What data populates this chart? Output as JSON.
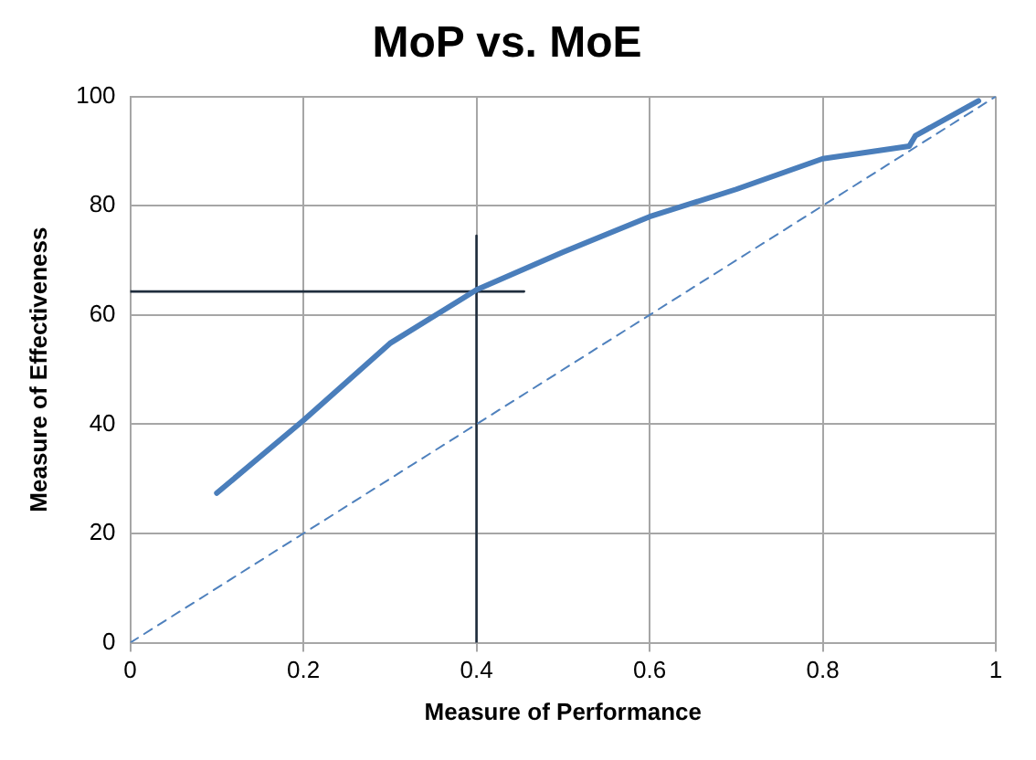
{
  "chart_data": {
    "type": "line",
    "title": "MoP vs. MoE",
    "xlabel": "Measure of Performance",
    "ylabel": "Measure of Effectiveness",
    "xlim": [
      0,
      1
    ],
    "xticks": [
      0,
      0.2,
      0.4,
      0.6,
      0.8,
      1
    ],
    "ylim": [
      0,
      100
    ],
    "yticks": [
      0,
      20,
      40,
      60,
      80,
      100
    ],
    "grid": true,
    "legend": false,
    "marker": "none",
    "series": [
      {
        "color": "#4a7ebb",
        "line_style": "solid",
        "x": [
          0.1,
          0.2,
          0.3,
          0.4,
          0.5,
          0.6,
          0.7,
          0.8,
          0.9,
          0.907,
          0.98
        ],
        "values": [
          27.4,
          40.7,
          54.8,
          64.6,
          71.5,
          78,
          83,
          88.6,
          90.9,
          92.8,
          99.2
        ]
      },
      {
        "color": "#4f81bd",
        "line_style": "dashed",
        "x": [
          0,
          1
        ],
        "values": [
          0,
          100
        ]
      },
      {
        "color": "#1f2d3d",
        "line_style": "solid",
        "x": [
          0,
          0.455
        ],
        "values": [
          64.3,
          64.3
        ]
      },
      {
        "color": "#1f2d3d",
        "line_style": "solid",
        "x": [
          0.4,
          0.4
        ],
        "values": [
          0,
          74.5
        ]
      }
    ]
  }
}
